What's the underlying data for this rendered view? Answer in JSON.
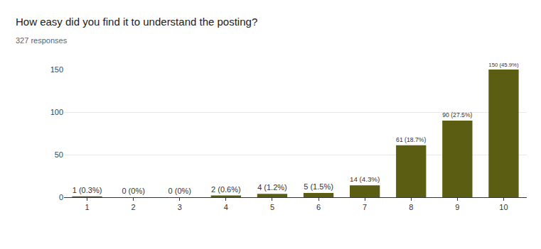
{
  "chart_data": {
    "type": "bar",
    "title": "How easy did you find it to understand the posting?",
    "subtitle": "327 responses",
    "categories": [
      "1",
      "2",
      "3",
      "4",
      "5",
      "6",
      "7",
      "8",
      "9",
      "10"
    ],
    "values": [
      1,
      0,
      0,
      2,
      4,
      5,
      14,
      61,
      90,
      150
    ],
    "value_labels": [
      "1 (0.3%)",
      "0 (0%)",
      "0 (0%)",
      "2 (0.6%)",
      "4 (1.2%)",
      "5 (1.5%)",
      "14 (4.3%)",
      "61 (18.7%)",
      "90 (27.5%)",
      "150 (45.9%)"
    ],
    "data_labels": true,
    "color": "#5b5e12",
    "ylim": [
      0,
      150
    ],
    "yticks": [
      0,
      50,
      100,
      150
    ],
    "grid": true
  }
}
